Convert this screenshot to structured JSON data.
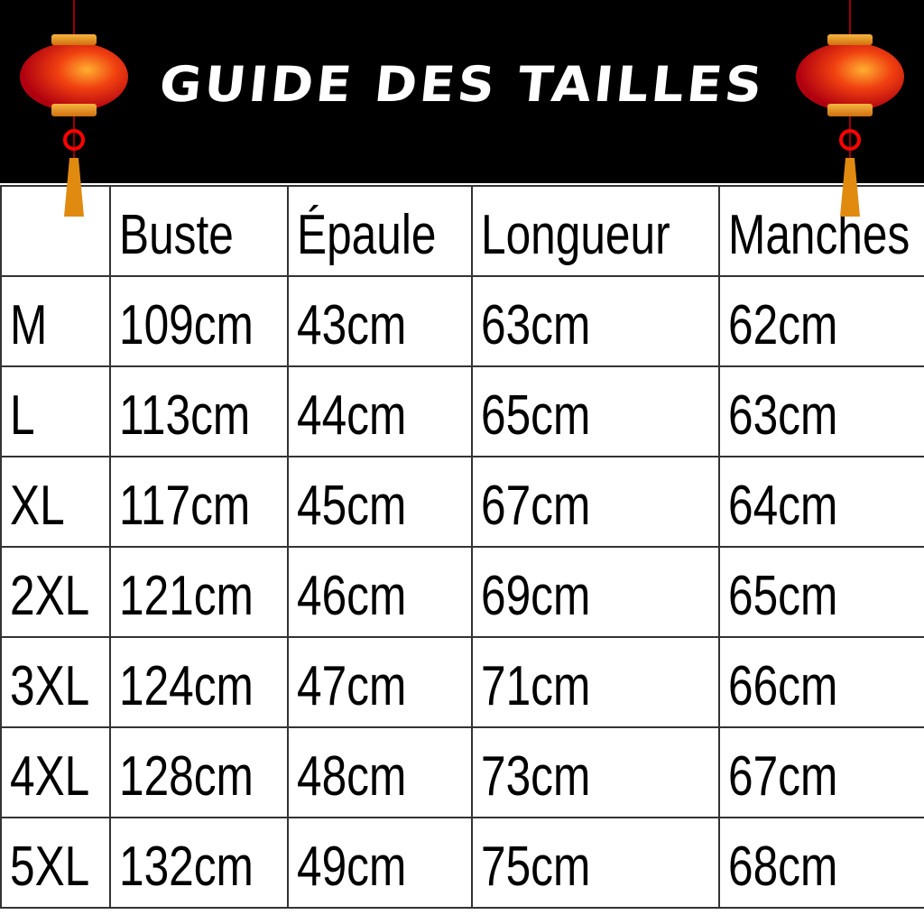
{
  "title": "GUIDE DES TAILLES",
  "colors": {
    "background_header": "#000000",
    "title_text": "#ffffff",
    "lantern_red": "#d40f0f",
    "lantern_gold": "#f0a020"
  },
  "decorations": [
    "lantern-icon",
    "lantern-icon"
  ],
  "table": {
    "headers": [
      "",
      "Buste",
      "Épaule",
      "Longueur",
      "Manches"
    ],
    "rows": [
      [
        "M",
        "109cm",
        "43cm",
        "63cm",
        "62cm"
      ],
      [
        "L",
        "113cm",
        "44cm",
        "65cm",
        "63cm"
      ],
      [
        "XL",
        "117cm",
        "45cm",
        "67cm",
        "64cm"
      ],
      [
        "2XL",
        "121cm",
        "46cm",
        "69cm",
        "65cm"
      ],
      [
        "3XL",
        "124cm",
        "47cm",
        "71cm",
        "66cm"
      ],
      [
        "4XL",
        "128cm",
        "48cm",
        "73cm",
        "67cm"
      ],
      [
        "5XL",
        "132cm",
        "49cm",
        "75cm",
        "68cm"
      ]
    ]
  }
}
